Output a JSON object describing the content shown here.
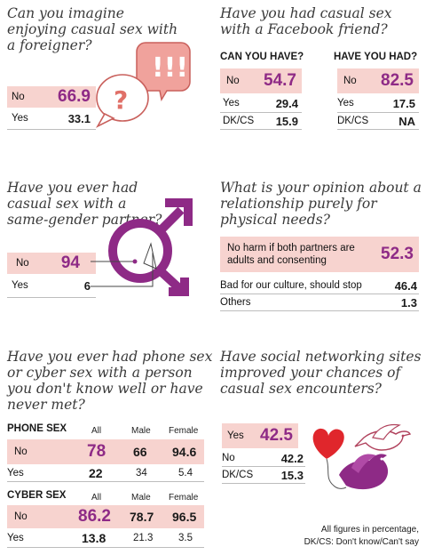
{
  "q1": {
    "question": "Can you imagine enjoying casual sex with a foreigner?",
    "rows": [
      {
        "label": "No",
        "value": "66.9"
      },
      {
        "label": "Yes",
        "value": "33.1"
      }
    ]
  },
  "q2": {
    "question": "Have you had casual sex with a Facebook friend?",
    "col1_header": "CAN YOU HAVE?",
    "col2_header": "HAVE YOU HAD?",
    "col1": [
      {
        "label": "No",
        "value": "54.7"
      },
      {
        "label": "Yes",
        "value": "29.4"
      },
      {
        "label": "DK/CS",
        "value": "15.9"
      }
    ],
    "col2": [
      {
        "label": "No",
        "value": "82.5"
      },
      {
        "label": "Yes",
        "value": "17.5"
      },
      {
        "label": "DK/CS",
        "value": "NA"
      }
    ]
  },
  "q3": {
    "question": "Have you ever had casual sex with a same-gender partner?",
    "rows": [
      {
        "label": "No",
        "value": "94"
      },
      {
        "label": "Yes",
        "value": "6"
      }
    ]
  },
  "q4": {
    "question": "What is your opinion about a relationship purely for physical needs?",
    "rows": [
      {
        "label": "No harm if both partners are adults and consenting",
        "value": "52.3"
      },
      {
        "label": "Bad for our culture, should stop",
        "value": "46.4"
      },
      {
        "label": "Others",
        "value": "1.3"
      }
    ]
  },
  "q5": {
    "question": "Have you ever had phone sex or cyber sex with a person you don't know well or have never met?",
    "phone": {
      "title": "PHONE SEX",
      "cols": [
        "All",
        "Male",
        "Female"
      ],
      "rows": [
        {
          "label": "No",
          "all": "78",
          "male": "66",
          "female": "94.6"
        },
        {
          "label": "Yes",
          "all": "22",
          "male": "34",
          "female": "5.4"
        }
      ]
    },
    "cyber": {
      "title": "CYBER SEX",
      "cols": [
        "All",
        "Male",
        "Female"
      ],
      "rows": [
        {
          "label": "No",
          "all": "86.2",
          "male": "78.7",
          "female": "96.5"
        },
        {
          "label": "Yes",
          "all": "13.8",
          "male": "21.3",
          "female": "3.5"
        }
      ]
    }
  },
  "q6": {
    "question": "Have social networking sites improved your chances of casual sex encounters?",
    "rows": [
      {
        "label": "Yes",
        "value": "42.5"
      },
      {
        "label": "No",
        "value": "42.2"
      },
      {
        "label": "DK/CS",
        "value": "15.3"
      }
    ]
  },
  "footnote": {
    "line1": "All figures in percentage,",
    "line2": "DK/CS: Don't know/Can't say"
  },
  "colors": {
    "highlight": "#f7d3cf",
    "accent": "#8e2a86",
    "heart": "#e0262c"
  }
}
